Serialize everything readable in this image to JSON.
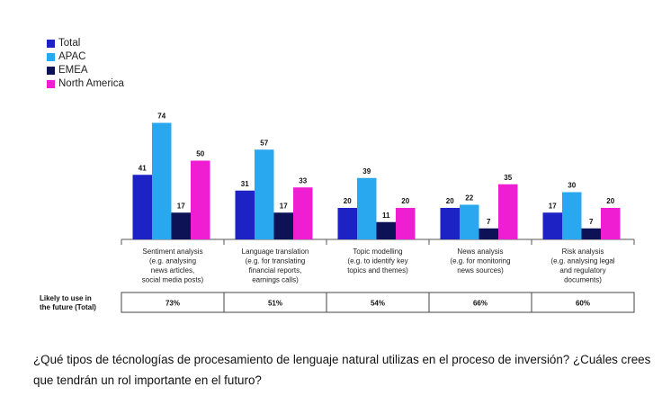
{
  "chart_data": {
    "type": "bar",
    "categories": [
      [
        "Sentiment analysis",
        "(e.g. analysing",
        "news articles,",
        "social media posts)"
      ],
      [
        "Language translation",
        "(e.g. for translating",
        "financial reports,",
        "earnings calls)"
      ],
      [
        "Topic modelling",
        "(e.g. to identify key",
        "topics and themes)"
      ],
      [
        "News analysis",
        "(e.g. for monitoring",
        "news sources)"
      ],
      [
        "Risk analysis",
        "(e.g. analysing legal",
        "and regulatory",
        "documents)"
      ]
    ],
    "series": [
      {
        "name": "Total",
        "color": "#1c22c4",
        "values": [
          41,
          31,
          20,
          20,
          17
        ]
      },
      {
        "name": "APAC",
        "color": "#29a8f0",
        "values": [
          74,
          57,
          39,
          22,
          30
        ]
      },
      {
        "name": "EMEA",
        "color": "#0c1255",
        "values": [
          17,
          17,
          11,
          7,
          7
        ]
      },
      {
        "name": "North America",
        "color": "#f01ed2",
        "values": [
          50,
          33,
          20,
          35,
          20
        ]
      }
    ],
    "ylim": [
      0,
      80
    ],
    "legend": "top-left",
    "grid": false,
    "future_row": {
      "label": [
        "Likely to use in",
        "the future (Total)"
      ],
      "values": [
        "73%",
        "51%",
        "54%",
        "66%",
        "60%"
      ]
    }
  },
  "question": "¿Qué tipos de técnologías de procesamiento de lenguaje natural utilizas en el proceso de inversión? ¿Cuáles crees que tendrán un rol importante en el futuro?"
}
